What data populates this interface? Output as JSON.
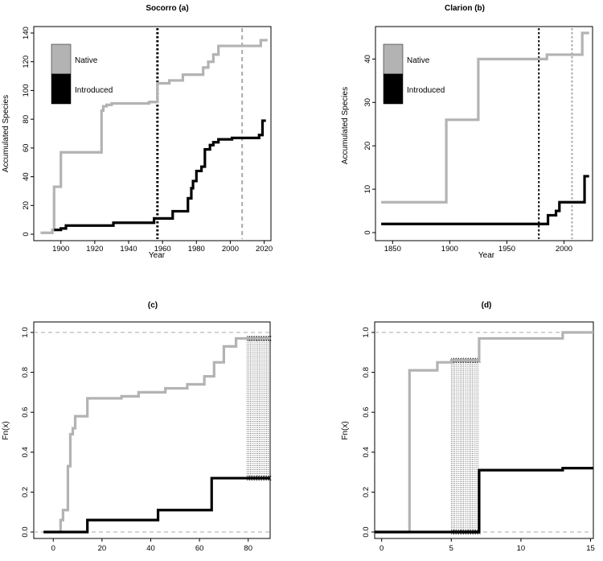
{
  "colors": {
    "native": "#b3b3b3",
    "introduced": "#000000",
    "axis": "#000000",
    "ref": "#a9a9a9",
    "hatch": "#000000"
  },
  "chart_data": [
    {
      "id": "a",
      "type": "line",
      "step": true,
      "title": "Socorro (a)",
      "xlabel": "Year",
      "ylabel": "Accumulated Species",
      "xlim": [
        1884,
        2024
      ],
      "ylim": [
        0,
        140
      ],
      "xticks": [
        1900,
        1920,
        1940,
        1960,
        1980,
        2000,
        2020
      ],
      "yticks": [
        0,
        20,
        40,
        60,
        80,
        100,
        120,
        140
      ],
      "vlines": [
        {
          "x": 1957,
          "style": "dotted",
          "color": "#000000",
          "width": 3
        },
        {
          "x": 2007,
          "style": "dashed",
          "color": "#a9a9a9",
          "width": 2
        }
      ],
      "legend": {
        "position": "top-left",
        "entries": [
          "Native",
          "Introduced"
        ]
      },
      "series": [
        {
          "name": "Native",
          "x": [
            1888,
            1895,
            1896,
            1900,
            1924,
            1925,
            1927,
            1930,
            1938,
            1944,
            1952,
            1957,
            1964,
            1969,
            1972,
            1984,
            1987,
            1990,
            1993,
            2004,
            2015,
            2018,
            2022
          ],
          "y": [
            1,
            3,
            33,
            57,
            86,
            89,
            90,
            91,
            91,
            91,
            92,
            105,
            107,
            107,
            111,
            116,
            120,
            125,
            131,
            131,
            131,
            135,
            135
          ]
        },
        {
          "name": "Introduced",
          "x": [
            1896,
            1900,
            1903,
            1931,
            1955,
            1966,
            1975,
            1977,
            1978,
            1980,
            1983,
            1985,
            1988,
            1990,
            1993,
            1995,
            2001,
            2012,
            2017,
            2019,
            2021
          ],
          "y": [
            3,
            4,
            6,
            8,
            11,
            16,
            25,
            32,
            37,
            44,
            47,
            59,
            62,
            64,
            66,
            66,
            67,
            67,
            69,
            79,
            79
          ]
        }
      ]
    },
    {
      "id": "b",
      "type": "line",
      "step": true,
      "title": "Clarion (b)",
      "xlabel": "Year",
      "ylabel": "Accumulated Species",
      "xlim": [
        1835,
        2025
      ],
      "ylim": [
        0,
        46
      ],
      "xticks": [
        1850,
        1900,
        1950,
        2000
      ],
      "yticks": [
        0,
        10,
        20,
        30,
        40
      ],
      "vlines": [
        {
          "x": 1978,
          "style": "dotted",
          "color": "#000000",
          "width": 2
        },
        {
          "x": 2007,
          "style": "dotted",
          "color": "#a9a9a9",
          "width": 2
        }
      ],
      "legend": {
        "position": "top-right",
        "entries": [
          "Native",
          "Introduced"
        ]
      },
      "series": [
        {
          "name": "Native",
          "x": [
            1840,
            1895,
            1897,
            1925,
            1978,
            1985,
            1988,
            2000,
            2014,
            2016,
            2022
          ],
          "y": [
            7,
            7,
            26,
            40,
            40,
            41,
            41,
            41,
            41,
            46,
            46
          ]
        },
        {
          "name": "Introduced",
          "x": [
            1840,
            1986,
            1993,
            1996,
            2015,
            2018,
            2022
          ],
          "y": [
            2,
            4,
            5,
            7,
            7,
            13,
            13
          ]
        }
      ]
    },
    {
      "id": "c",
      "type": "line",
      "step": true,
      "title": "(c)",
      "xlabel": "",
      "ylabel": "Fn(x)",
      "xlim": [
        -8,
        89
      ],
      "ylim": [
        0,
        1
      ],
      "xticks": [
        0,
        20,
        40,
        60,
        80
      ],
      "yticks": [
        0.0,
        0.2,
        0.4,
        0.6,
        0.8,
        1.0
      ],
      "ytick_labels": [
        "0.0",
        "0.2",
        "0.4",
        "0.6",
        "0.8",
        "1.0"
      ],
      "hlines": [
        0,
        1
      ],
      "hatch_x": [
        79.5,
        89
      ],
      "series": [
        {
          "name": "Native",
          "x": [
            -4,
            3,
            4,
            6,
            7,
            8,
            9,
            10,
            13,
            14,
            15,
            28,
            29,
            35,
            44,
            46,
            55,
            59,
            62,
            66,
            70,
            75,
            89
          ],
          "y": [
            0,
            0.06,
            0.11,
            0.33,
            0.49,
            0.52,
            0.58,
            0.58,
            0.58,
            0.67,
            0.67,
            0.68,
            0.68,
            0.7,
            0.7,
            0.72,
            0.74,
            0.74,
            0.78,
            0.85,
            0.93,
            0.97,
            0.97
          ]
        },
        {
          "name": "Introduced",
          "x": [
            -4,
            14,
            43,
            65,
            89
          ],
          "y": [
            0,
            0.06,
            0.11,
            0.27,
            0.27
          ]
        }
      ]
    },
    {
      "id": "d",
      "type": "line",
      "step": true,
      "title": "(d)",
      "xlabel": "",
      "ylabel": "Fn(x)",
      "xlim": [
        -0.5,
        15.2
      ],
      "ylim": [
        0,
        1
      ],
      "xticks": [
        0,
        5,
        10,
        15
      ],
      "yticks": [
        0.0,
        0.2,
        0.4,
        0.6,
        0.8,
        1.0
      ],
      "ytick_labels": [
        "0.0",
        "0.2",
        "0.4",
        "0.6",
        "0.8",
        "1.0"
      ],
      "hlines": [
        0,
        1
      ],
      "hatch_x": [
        5,
        7
      ],
      "series": [
        {
          "name": "Native",
          "x": [
            -0.5,
            2,
            4,
            5,
            7,
            13,
            15.2
          ],
          "y": [
            0,
            0.81,
            0.85,
            0.86,
            0.97,
            1.0,
            1.0
          ]
        },
        {
          "name": "Introduced",
          "x": [
            -0.5,
            7,
            13,
            15.2
          ],
          "y": [
            0,
            0.31,
            0.32,
            0.32
          ]
        }
      ]
    }
  ]
}
